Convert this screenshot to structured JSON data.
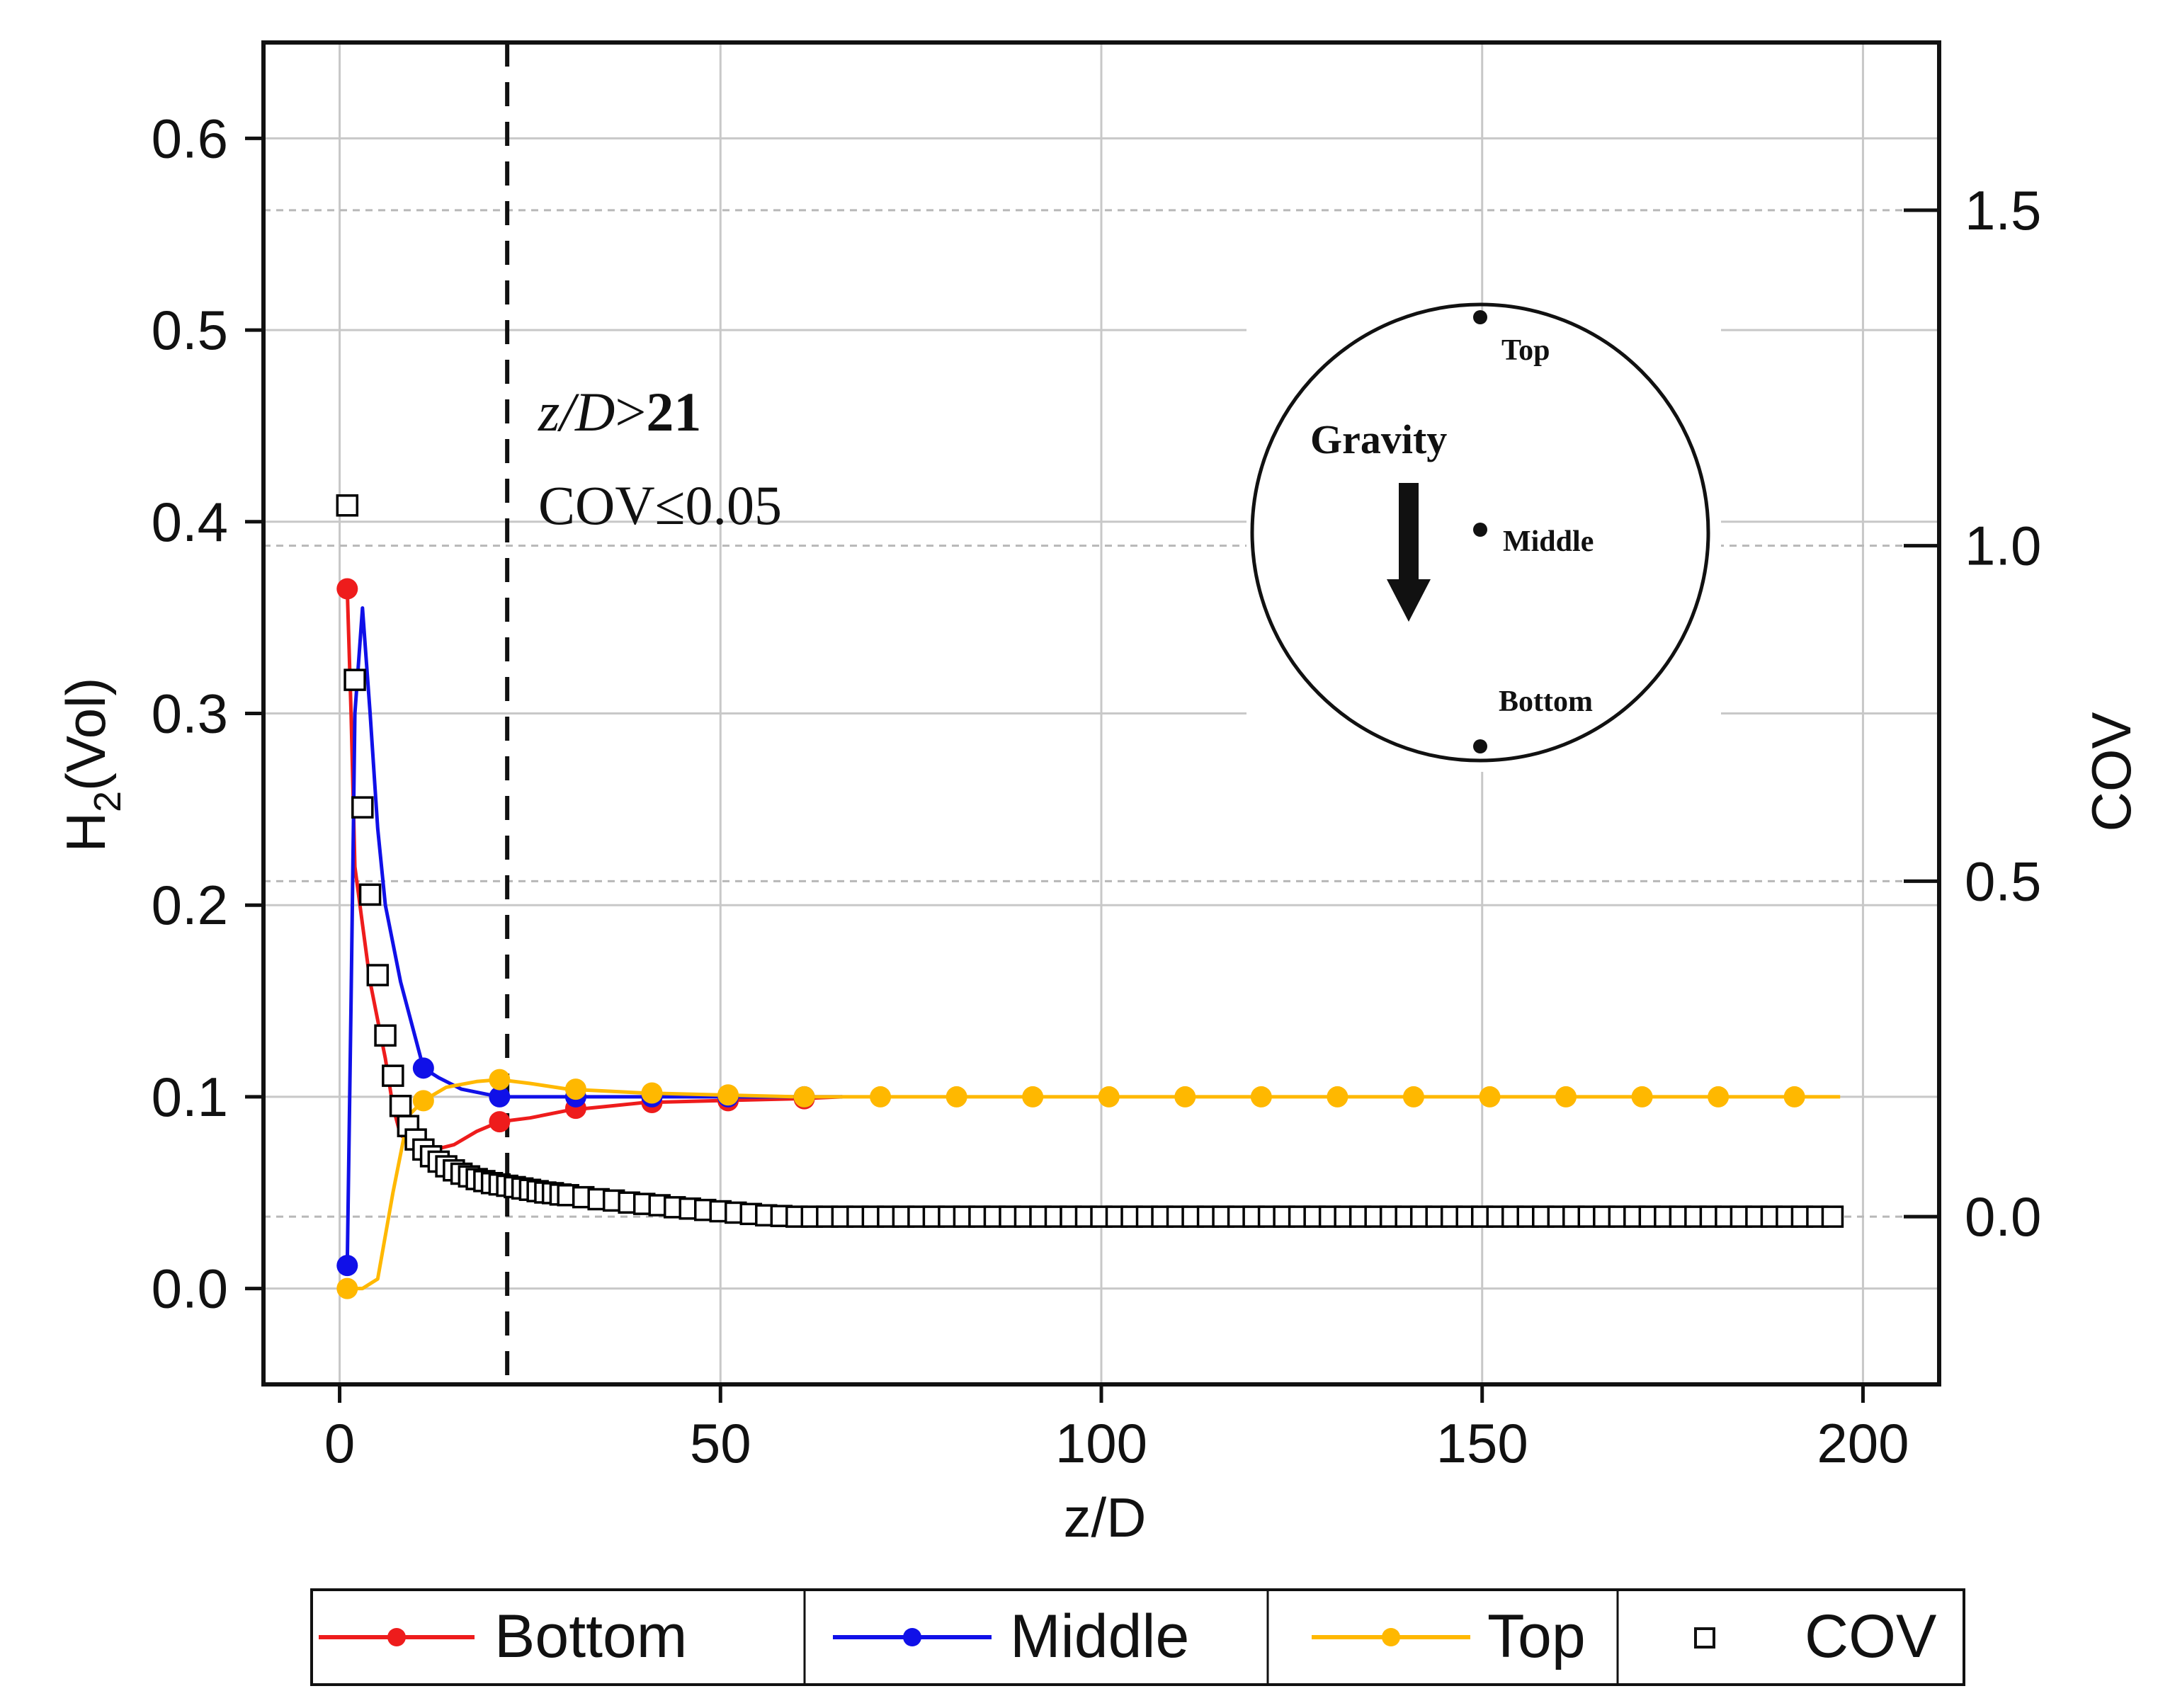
{
  "chart_data": {
    "type": "line",
    "xlabel": "z/D",
    "ylabel_main": "H",
    "ylabel_sub": "2",
    "ylabel_suffix": "(Vol)",
    "y2label": "COV",
    "xlim": [
      -10,
      210
    ],
    "ylim": [
      -0.05,
      0.65
    ],
    "y2lim": [
      -0.25,
      1.75
    ],
    "xticks": [
      0,
      50,
      100,
      150,
      200
    ],
    "yticks": [
      0.0,
      0.1,
      0.2,
      0.3,
      0.4,
      0.5,
      0.6
    ],
    "y2ticks": [
      0.0,
      0.5,
      1.0,
      1.5
    ],
    "xtick_labels": [
      "0",
      "50",
      "100",
      "150",
      "200"
    ],
    "ytick_labels": [
      "0.0",
      "0.1",
      "0.2",
      "0.3",
      "0.4",
      "0.5",
      "0.6"
    ],
    "y2tick_labels": [
      "0.0",
      "0.5",
      "1.0",
      "1.5"
    ],
    "grid": true,
    "vline": {
      "x": 22
    },
    "threshold_annotation": {
      "italic": "z/D",
      "op": ">",
      "value": "21",
      "line2": "COV≤0.05"
    },
    "inset": {
      "labels": {
        "top": "Top",
        "middle": "Middle",
        "bottom": "Bottom",
        "gravity": "Gravity"
      }
    },
    "series": [
      {
        "name": "Bottom",
        "color": "#ee1c1c",
        "curve": [
          [
            1,
            0.365
          ],
          [
            1.5,
            0.3
          ],
          [
            2,
            0.22
          ],
          [
            3,
            0.19
          ],
          [
            4,
            0.16
          ],
          [
            5,
            0.14
          ],
          [
            6,
            0.12
          ],
          [
            7,
            0.095
          ],
          [
            8,
            0.08
          ],
          [
            10,
            0.075
          ],
          [
            12,
            0.072
          ],
          [
            15,
            0.075
          ],
          [
            18,
            0.082
          ],
          [
            21,
            0.087
          ],
          [
            25,
            0.089
          ],
          [
            30,
            0.093
          ],
          [
            35,
            0.095
          ],
          [
            40,
            0.097
          ],
          [
            50,
            0.098
          ],
          [
            60,
            0.099
          ],
          [
            66,
            0.1
          ]
        ],
        "markers_x": [
          1,
          21,
          31,
          41,
          51,
          61
        ],
        "markers_y": [
          0.365,
          0.087,
          0.094,
          0.097,
          0.098,
          0.099
        ]
      },
      {
        "name": "Middle",
        "color": "#1010e8",
        "curve": [
          [
            1,
            0.012
          ],
          [
            1.5,
            0.15
          ],
          [
            2,
            0.3
          ],
          [
            3,
            0.355
          ],
          [
            4,
            0.3
          ],
          [
            5,
            0.24
          ],
          [
            6,
            0.2
          ],
          [
            8,
            0.16
          ],
          [
            10,
            0.13
          ],
          [
            11,
            0.115
          ],
          [
            13,
            0.11
          ],
          [
            16,
            0.104
          ],
          [
            21,
            0.1
          ],
          [
            30,
            0.1
          ],
          [
            40,
            0.1
          ],
          [
            50,
            0.1
          ],
          [
            60,
            0.1
          ],
          [
            66,
            0.1
          ]
        ],
        "markers_x": [
          1,
          11,
          21,
          31,
          41,
          51,
          61
        ],
        "markers_y": [
          0.012,
          0.115,
          0.1,
          0.1,
          0.1,
          0.1,
          0.1
        ]
      },
      {
        "name": "Top",
        "color": "#ffb800",
        "curve": [
          [
            1,
            0.0
          ],
          [
            3,
            0.0
          ],
          [
            5,
            0.005
          ],
          [
            7,
            0.05
          ],
          [
            9,
            0.09
          ],
          [
            11,
            0.098
          ],
          [
            14,
            0.105
          ],
          [
            18,
            0.108
          ],
          [
            21,
            0.109
          ],
          [
            25,
            0.107
          ],
          [
            30,
            0.104
          ],
          [
            40,
            0.102
          ],
          [
            50,
            0.101
          ],
          [
            60,
            0.1
          ],
          [
            70,
            0.1
          ],
          [
            100,
            0.1
          ],
          [
            150,
            0.1
          ],
          [
            197,
            0.1
          ]
        ],
        "markers_x": [
          1,
          11,
          21,
          31,
          41,
          51,
          61,
          71,
          81,
          91,
          101,
          111,
          121,
          131,
          141,
          151,
          161,
          171,
          181,
          191
        ],
        "markers_y": [
          0.0,
          0.098,
          0.109,
          0.104,
          0.102,
          0.101,
          0.1,
          0.1,
          0.1,
          0.1,
          0.1,
          0.1,
          0.1,
          0.1,
          0.1,
          0.1,
          0.1,
          0.1,
          0.1,
          0.1
        ]
      },
      {
        "name": "COV",
        "color": "#000000",
        "marker": "open-square",
        "points": [
          [
            1,
            1.06
          ],
          [
            2,
            0.8
          ],
          [
            3,
            0.61
          ],
          [
            4,
            0.48
          ],
          [
            5,
            0.36
          ],
          [
            6,
            0.27
          ],
          [
            7,
            0.21
          ],
          [
            8,
            0.165
          ],
          [
            9,
            0.135
          ],
          [
            10,
            0.115
          ],
          [
            11,
            0.1
          ],
          [
            12,
            0.09
          ],
          [
            13,
            0.082
          ],
          [
            14,
            0.075
          ],
          [
            15,
            0.069
          ],
          [
            16,
            0.064
          ],
          [
            17,
            0.06
          ],
          [
            18,
            0.056
          ],
          [
            19,
            0.053
          ],
          [
            20,
            0.05
          ],
          [
            21,
            0.048
          ],
          [
            22,
            0.046
          ],
          [
            23,
            0.044
          ],
          [
            24,
            0.042
          ],
          [
            25,
            0.04
          ],
          [
            26,
            0.038
          ],
          [
            27,
            0.036
          ],
          [
            28,
            0.035
          ],
          [
            29,
            0.033
          ],
          [
            30,
            0.032
          ],
          [
            32,
            0.029
          ],
          [
            34,
            0.026
          ],
          [
            36,
            0.024
          ],
          [
            38,
            0.021
          ],
          [
            40,
            0.019
          ],
          [
            42,
            0.017
          ],
          [
            44,
            0.014
          ],
          [
            46,
            0.012
          ],
          [
            48,
            0.01
          ],
          [
            50,
            0.008
          ],
          [
            52,
            0.006
          ],
          [
            54,
            0.004
          ],
          [
            56,
            0.002
          ],
          [
            58,
            0.001
          ],
          [
            60,
            0.0
          ],
          [
            62,
            0.0
          ],
          [
            64,
            0.0
          ],
          [
            66,
            0.0
          ],
          [
            68,
            0.0
          ],
          [
            70,
            0.0
          ],
          [
            72,
            0.0
          ],
          [
            74,
            0.0
          ],
          [
            76,
            0.0
          ],
          [
            78,
            0.0
          ],
          [
            80,
            0.0
          ],
          [
            82,
            0.0
          ],
          [
            84,
            0.0
          ],
          [
            86,
            0.0
          ],
          [
            88,
            0.0
          ],
          [
            90,
            0.0
          ],
          [
            92,
            0.0
          ],
          [
            94,
            0.0
          ],
          [
            96,
            0.0
          ],
          [
            98,
            0.0
          ],
          [
            100,
            0.0
          ],
          [
            102,
            0.0
          ],
          [
            104,
            0.0
          ],
          [
            106,
            0.0
          ],
          [
            108,
            0.0
          ],
          [
            110,
            0.0
          ],
          [
            112,
            0.0
          ],
          [
            114,
            0.0
          ],
          [
            116,
            0.0
          ],
          [
            118,
            0.0
          ],
          [
            120,
            0.0
          ],
          [
            122,
            0.0
          ],
          [
            124,
            0.0
          ],
          [
            126,
            0.0
          ],
          [
            128,
            0.0
          ],
          [
            130,
            0.0
          ],
          [
            132,
            0.0
          ],
          [
            134,
            0.0
          ],
          [
            136,
            0.0
          ],
          [
            138,
            0.0
          ],
          [
            140,
            0.0
          ],
          [
            142,
            0.0
          ],
          [
            144,
            0.0
          ],
          [
            146,
            0.0
          ],
          [
            148,
            0.0
          ],
          [
            150,
            0.0
          ],
          [
            152,
            0.0
          ],
          [
            154,
            0.0
          ],
          [
            156,
            0.0
          ],
          [
            158,
            0.0
          ],
          [
            160,
            0.0
          ],
          [
            162,
            0.0
          ],
          [
            164,
            0.0
          ],
          [
            166,
            0.0
          ],
          [
            168,
            0.0
          ],
          [
            170,
            0.0
          ],
          [
            172,
            0.0
          ],
          [
            174,
            0.0
          ],
          [
            176,
            0.0
          ],
          [
            178,
            0.0
          ],
          [
            180,
            0.0
          ],
          [
            182,
            0.0
          ],
          [
            184,
            0.0
          ],
          [
            186,
            0.0
          ],
          [
            188,
            0.0
          ],
          [
            190,
            0.0
          ],
          [
            192,
            0.0
          ],
          [
            194,
            0.0
          ],
          [
            196,
            0.0
          ]
        ]
      }
    ],
    "legend": [
      "Bottom",
      "Middle",
      "Top",
      "COV"
    ]
  }
}
